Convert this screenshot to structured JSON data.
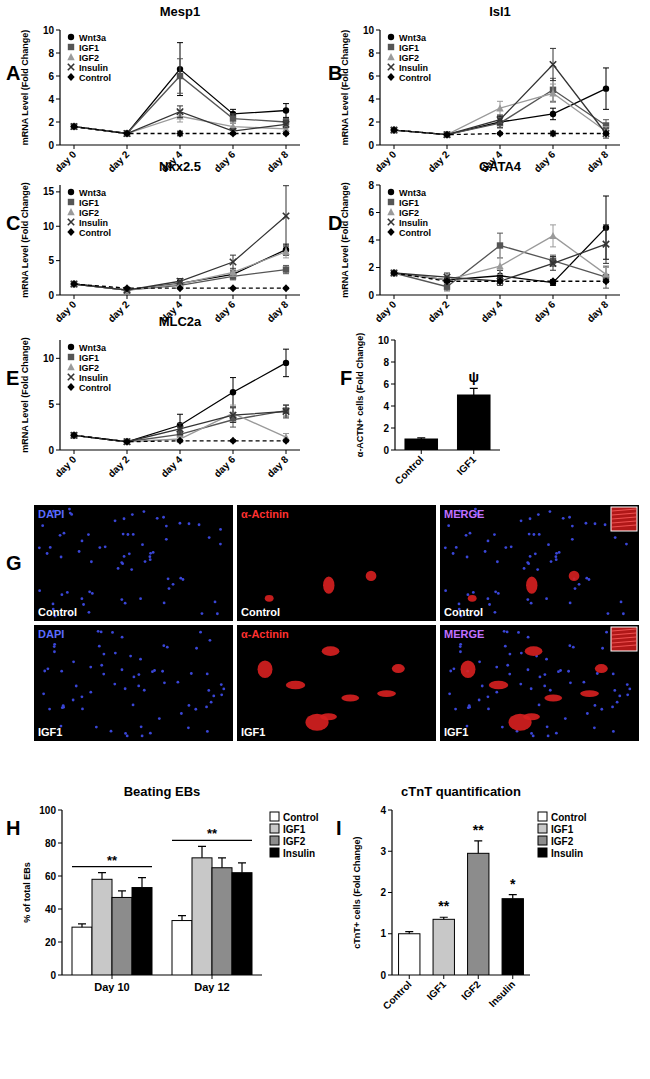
{
  "chart_data": [
    {
      "type": "line",
      "panel": "A",
      "title": "Mesp1",
      "ylabel": "mRNA Level (Fold Change)",
      "categories": [
        "day 0",
        "day 2",
        "day 4",
        "day 6",
        "day 8"
      ],
      "ylim": [
        0,
        10
      ],
      "yticks": [
        0,
        2,
        4,
        6,
        8,
        10
      ],
      "legend": "upper left",
      "series": [
        {
          "name": "Wnt3a",
          "color": "#000000",
          "marker": "circle",
          "line_style": "solid",
          "values": [
            1.6,
            1.0,
            6.6,
            2.7,
            3.0
          ],
          "errors": [
            0.1,
            0.1,
            2.3,
            0.4,
            0.6
          ]
        },
        {
          "name": "IGF1",
          "color": "#555555",
          "marker": "square",
          "line_style": "solid",
          "values": [
            1.6,
            1.0,
            6.0,
            2.3,
            2.0
          ],
          "errors": [
            0.1,
            0.1,
            1.5,
            0.4,
            0.3
          ]
        },
        {
          "name": "IGF2",
          "color": "#9a9a9a",
          "marker": "triangle",
          "line_style": "solid",
          "values": [
            1.6,
            1.0,
            2.5,
            1.6,
            1.4
          ],
          "errors": [
            0.1,
            0.1,
            0.5,
            0.3,
            0.3
          ]
        },
        {
          "name": "Insulin",
          "color": "#333333",
          "marker": "x",
          "line_style": "solid",
          "values": [
            1.6,
            1.0,
            2.9,
            1.2,
            1.8
          ],
          "errors": [
            0.1,
            0.1,
            0.5,
            0.2,
            0.3
          ]
        },
        {
          "name": "Control",
          "color": "#000000",
          "marker": "diamond",
          "line_style": "dashed",
          "values": [
            1.6,
            1.0,
            1.0,
            1.0,
            1.0
          ],
          "errors": [
            0.1,
            0.1,
            0.2,
            0.1,
            0.1
          ]
        }
      ]
    },
    {
      "type": "line",
      "panel": "B",
      "title": "Isl1",
      "ylabel": "mRNA Level (Fold Change)",
      "categories": [
        "day 0",
        "day 2",
        "day 4",
        "day 6",
        "day 8"
      ],
      "ylim": [
        0,
        10
      ],
      "yticks": [
        0,
        2,
        4,
        6,
        8,
        10
      ],
      "legend": "upper left",
      "series": [
        {
          "name": "Wnt3a",
          "color": "#000000",
          "marker": "circle",
          "line_style": "solid",
          "values": [
            1.3,
            0.9,
            2.0,
            2.7,
            4.9
          ],
          "errors": [
            0.1,
            0.1,
            0.5,
            0.5,
            1.8
          ]
        },
        {
          "name": "IGF1",
          "color": "#555555",
          "marker": "square",
          "line_style": "solid",
          "values": [
            1.3,
            0.9,
            1.9,
            4.8,
            1.7
          ],
          "errors": [
            0.1,
            0.1,
            0.4,
            1.0,
            0.5
          ]
        },
        {
          "name": "IGF2",
          "color": "#9a9a9a",
          "marker": "triangle",
          "line_style": "solid",
          "values": [
            1.3,
            0.9,
            3.2,
            4.5,
            1.2
          ],
          "errors": [
            0.1,
            0.1,
            0.6,
            0.8,
            0.4
          ]
        },
        {
          "name": "Insulin",
          "color": "#333333",
          "marker": "x",
          "line_style": "solid",
          "values": [
            1.3,
            0.9,
            2.2,
            7.0,
            1.0
          ],
          "errors": [
            0.1,
            0.1,
            0.4,
            1.4,
            0.4
          ]
        },
        {
          "name": "Control",
          "color": "#000000",
          "marker": "diamond",
          "line_style": "dashed",
          "values": [
            1.3,
            0.9,
            1.0,
            1.0,
            1.0
          ],
          "errors": [
            0.1,
            0.1,
            0.1,
            0.2,
            0.1
          ]
        }
      ]
    },
    {
      "type": "line",
      "panel": "C",
      "title": "Nkx2.5",
      "ylabel": "mRNA Level (Fold Change)",
      "categories": [
        "day 0",
        "day 2",
        "day 4",
        "day 6",
        "day 8"
      ],
      "ylim": [
        0,
        16
      ],
      "yticks": [
        0,
        5,
        10,
        15
      ],
      "legend": "upper left",
      "series": [
        {
          "name": "Wnt3a",
          "color": "#000000",
          "marker": "circle",
          "line_style": "solid",
          "values": [
            1.6,
            0.7,
            1.7,
            3.0,
            6.6
          ],
          "errors": [
            0.1,
            0.1,
            0.4,
            0.5,
            0.8
          ]
        },
        {
          "name": "IGF1",
          "color": "#555555",
          "marker": "square",
          "line_style": "solid",
          "values": [
            1.6,
            0.7,
            1.4,
            2.7,
            3.7
          ],
          "errors": [
            0.1,
            0.1,
            0.3,
            0.5,
            0.6
          ]
        },
        {
          "name": "IGF2",
          "color": "#9a9a9a",
          "marker": "triangle",
          "line_style": "solid",
          "values": [
            1.6,
            0.7,
            1.6,
            3.3,
            6.3
          ],
          "errors": [
            0.1,
            0.1,
            0.3,
            0.6,
            0.9
          ]
        },
        {
          "name": "Insulin",
          "color": "#333333",
          "marker": "x",
          "line_style": "solid",
          "values": [
            1.6,
            0.7,
            2.0,
            4.8,
            11.5
          ],
          "errors": [
            0.1,
            0.1,
            0.4,
            1.0,
            4.4
          ]
        },
        {
          "name": "Control",
          "color": "#000000",
          "marker": "diamond",
          "line_style": "dashed",
          "values": [
            1.6,
            1.0,
            1.0,
            1.0,
            1.0
          ],
          "errors": [
            0.1,
            0.1,
            0.1,
            0.1,
            0.1
          ]
        }
      ]
    },
    {
      "type": "line",
      "panel": "D",
      "title": "GATA4",
      "ylabel": "mRNA Level (Fold Change)",
      "categories": [
        "day 0",
        "day 2",
        "day 4",
        "day 6",
        "day 8"
      ],
      "ylim": [
        0,
        8
      ],
      "yticks": [
        0,
        2,
        4,
        6,
        8
      ],
      "legend": "upper left",
      "series": [
        {
          "name": "Wnt3a",
          "color": "#000000",
          "marker": "circle",
          "line_style": "solid",
          "values": [
            1.6,
            1.1,
            1.4,
            0.9,
            4.9
          ],
          "errors": [
            0.1,
            0.2,
            0.4,
            0.2,
            2.3
          ]
        },
        {
          "name": "IGF1",
          "color": "#555555",
          "marker": "square",
          "line_style": "solid",
          "values": [
            1.6,
            0.6,
            3.6,
            2.5,
            1.3
          ],
          "errors": [
            0.1,
            0.3,
            0.9,
            0.4,
            0.8
          ]
        },
        {
          "name": "IGF2",
          "color": "#9a9a9a",
          "marker": "triangle",
          "line_style": "solid",
          "values": [
            1.6,
            1.1,
            2.1,
            4.3,
            1.5
          ],
          "errors": [
            0.1,
            0.2,
            0.6,
            0.8,
            0.5
          ]
        },
        {
          "name": "Insulin",
          "color": "#333333",
          "marker": "x",
          "line_style": "solid",
          "values": [
            1.6,
            1.3,
            1.0,
            2.3,
            3.7
          ],
          "errors": [
            0.1,
            0.3,
            0.3,
            0.5,
            1.4
          ]
        },
        {
          "name": "Control",
          "color": "#000000",
          "marker": "diamond",
          "line_style": "dashed",
          "values": [
            1.6,
            1.0,
            1.0,
            1.0,
            1.0
          ],
          "errors": [
            0.1,
            0.1,
            0.1,
            0.1,
            0.1
          ]
        }
      ]
    },
    {
      "type": "line",
      "panel": "E",
      "title": "MLC2a",
      "ylabel": "mRNA Level (Fold Change)",
      "categories": [
        "day 0",
        "day 2",
        "day 4",
        "day 6",
        "day 8"
      ],
      "ylim": [
        0,
        12
      ],
      "yticks": [
        0,
        5,
        10
      ],
      "legend": "upper left",
      "series": [
        {
          "name": "Wnt3a",
          "color": "#000000",
          "marker": "circle",
          "line_style": "solid",
          "values": [
            1.6,
            0.9,
            2.7,
            6.3,
            9.5
          ],
          "errors": [
            0.1,
            0.1,
            1.2,
            1.6,
            1.5
          ]
        },
        {
          "name": "IGF1",
          "color": "#555555",
          "marker": "square",
          "line_style": "solid",
          "values": [
            1.6,
            0.9,
            1.7,
            3.3,
            4.3
          ],
          "errors": [
            0.1,
            0.1,
            0.6,
            0.8,
            0.6
          ]
        },
        {
          "name": "IGF2",
          "color": "#9a9a9a",
          "marker": "triangle",
          "line_style": "solid",
          "values": [
            1.6,
            0.9,
            1.2,
            4.0,
            1.4
          ],
          "errors": [
            0.1,
            0.1,
            0.3,
            0.9,
            0.4
          ]
        },
        {
          "name": "Insulin",
          "color": "#333333",
          "marker": "x",
          "line_style": "solid",
          "values": [
            1.6,
            0.9,
            2.3,
            3.8,
            4.2
          ],
          "errors": [
            0.1,
            0.1,
            0.6,
            0.8,
            0.7
          ]
        },
        {
          "name": "Control",
          "color": "#000000",
          "marker": "diamond",
          "line_style": "dashed",
          "values": [
            1.6,
            0.9,
            1.0,
            1.0,
            1.0
          ],
          "errors": [
            0.1,
            0.1,
            0.1,
            0.1,
            0.1
          ]
        }
      ]
    },
    {
      "type": "bar",
      "panel": "F",
      "ylabel": "α-ACTN+ cells (Fold Change)",
      "categories": [
        "Control",
        "IGF1"
      ],
      "values": [
        1.0,
        5.0
      ],
      "errors": [
        0.1,
        0.6
      ],
      "color": "#000000",
      "annotations": [
        null,
        "ψ"
      ],
      "ylim": [
        0,
        10
      ],
      "yticks": [
        0,
        2,
        4,
        6,
        8,
        10
      ]
    },
    {
      "type": "bar",
      "panel": "H",
      "title": "Beating EBs",
      "ylabel": "% of total EBs",
      "categories": [
        "Day 10",
        "Day 12"
      ],
      "ylim": [
        0,
        100
      ],
      "yticks": [
        0,
        20,
        40,
        60,
        80,
        100
      ],
      "legend": "upper right",
      "annotations": [
        "**",
        "**"
      ],
      "series": [
        {
          "name": "Control",
          "color": "#ffffff",
          "values": [
            29,
            33
          ],
          "errors": [
            2,
            3
          ]
        },
        {
          "name": "IGF1",
          "color": "#c8c8c8",
          "values": [
            58,
            71
          ],
          "errors": [
            4,
            7
          ]
        },
        {
          "name": "IGF2",
          "color": "#8c8c8c",
          "values": [
            47,
            65
          ],
          "errors": [
            4,
            6
          ]
        },
        {
          "name": "Insulin",
          "color": "#000000",
          "values": [
            53,
            62
          ],
          "errors": [
            6,
            6
          ]
        }
      ]
    },
    {
      "type": "bar",
      "panel": "I",
      "title": "cTnT quantification",
      "ylabel": "cTnT+ cells (Fold Change)",
      "categories": [
        "Control",
        "IGF1",
        "IGF2",
        "Insulin"
      ],
      "values": [
        1.0,
        1.35,
        2.95,
        1.85
      ],
      "errors": [
        0.05,
        0.05,
        0.3,
        0.1
      ],
      "colors": [
        "#ffffff",
        "#c8c8c8",
        "#8c8c8c",
        "#000000"
      ],
      "legend": "upper right",
      "annotations": [
        null,
        "**",
        "**",
        "*"
      ],
      "ylim": [
        0,
        4
      ],
      "yticks": [
        0,
        1,
        2,
        3,
        4
      ]
    }
  ],
  "micrograph": {
    "panel": "G",
    "columns": [
      "DAPI",
      "α-Actinin",
      "MERGE"
    ],
    "rows": [
      "Control",
      "IGF1"
    ]
  }
}
